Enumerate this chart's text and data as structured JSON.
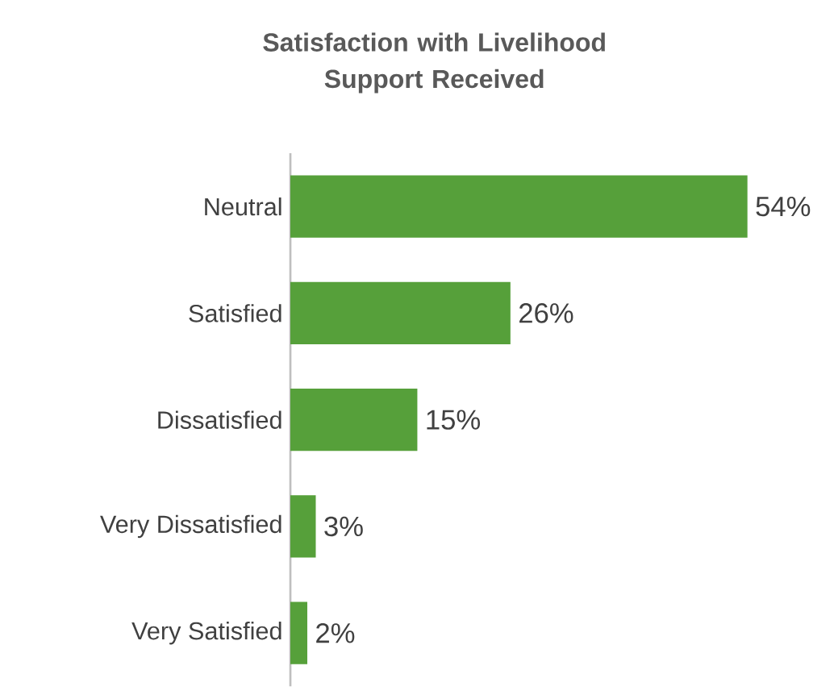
{
  "chart_data": {
    "type": "bar",
    "orientation": "horizontal",
    "title": "Satisfaction with Livelihood Support Received",
    "categories": [
      "Neutral",
      "Satisfied",
      "Dissatisfied",
      "Very Dissatisfied",
      "Very Satisfied"
    ],
    "values": [
      54,
      26,
      15,
      3,
      2
    ],
    "value_labels": [
      "54%",
      "26%",
      "15%",
      "3%",
      "2%"
    ],
    "color": "#56a03a"
  }
}
